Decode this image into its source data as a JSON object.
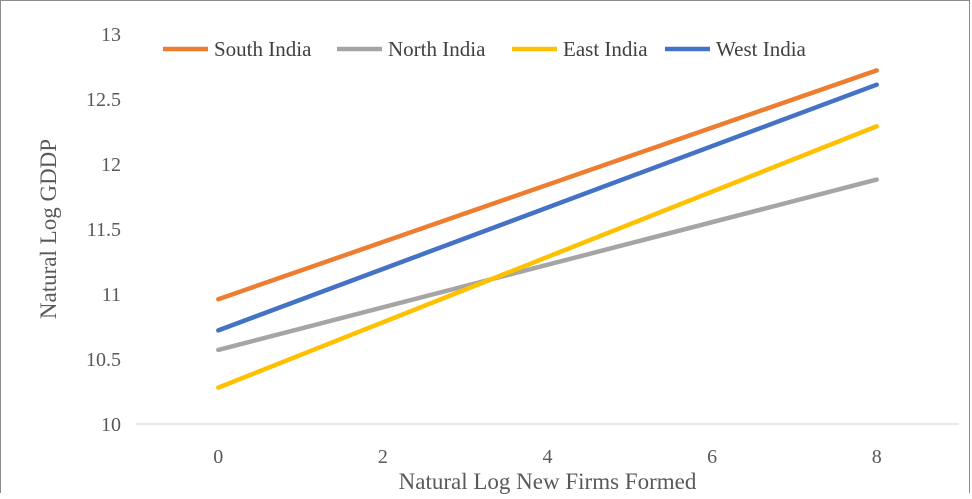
{
  "chart_data": {
    "type": "line",
    "title": "",
    "xlabel": "Natural Log New Firms Formed",
    "ylabel": "Natural Log GDDP",
    "xlim": [
      -1,
      9
    ],
    "ylim": [
      10,
      13
    ],
    "x_ticks": [
      0,
      2,
      4,
      6,
      8
    ],
    "y_ticks": [
      10,
      10.5,
      11,
      11.5,
      12,
      12.5,
      13
    ],
    "x_tick_labels": [
      "0",
      "2",
      "4",
      "6",
      "8"
    ],
    "y_tick_labels": [
      "10",
      "10.5",
      "11",
      "11.5",
      "12",
      "12.5",
      "13"
    ],
    "grid": false,
    "legend_position": "top",
    "series": [
      {
        "name": "South India",
        "color": "#ED7D31",
        "x": [
          0,
          8
        ],
        "y": [
          10.96,
          12.72
        ]
      },
      {
        "name": "North India",
        "color": "#A5A5A5",
        "x": [
          0,
          8
        ],
        "y": [
          10.57,
          11.88
        ]
      },
      {
        "name": "East India",
        "color": "#FFC000",
        "x": [
          0,
          8
        ],
        "y": [
          10.28,
          12.29
        ]
      },
      {
        "name": "West India",
        "color": "#4472C4",
        "x": [
          0,
          8
        ],
        "y": [
          10.72,
          12.61
        ]
      }
    ]
  }
}
